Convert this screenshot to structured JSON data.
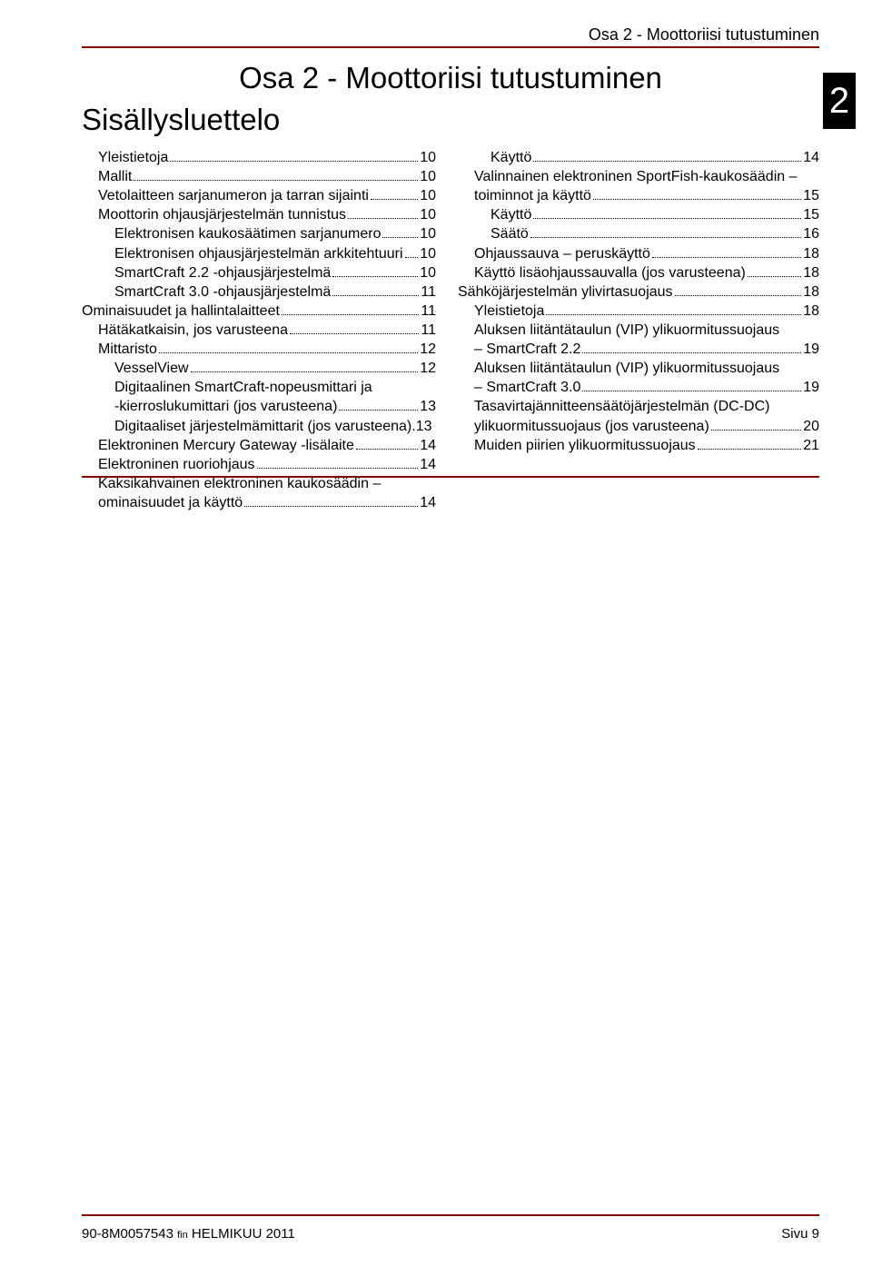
{
  "header_text": "Osa 2 - Moottoriisi tutustuminen",
  "title": "Osa 2 - Moottoriisi tutustuminen",
  "subtitle": "Sisällysluettelo",
  "tab_number": "2",
  "footer_left_code": "90-8M0057543",
  "footer_left_lang": "fin",
  "footer_left_date": "HELMIKUU  2011",
  "footer_right": "Sivu  9",
  "left": [
    {
      "indent": 1,
      "label": "Yleistietoja",
      "page": "10"
    },
    {
      "indent": 1,
      "label": "Mallit",
      "page": "10"
    },
    {
      "indent": 1,
      "label": "Vetolaitteen sarjanumeron ja tarran sijainti",
      "page": "10"
    },
    {
      "indent": 1,
      "label": "Moottorin ohjausjärjestelmän tunnistus",
      "page": "10"
    },
    {
      "indent": 2,
      "label": "Elektronisen kaukosäätimen sarjanumero",
      "page": "10"
    },
    {
      "indent": 2,
      "label": "Elektronisen ohjausjärjestelmän arkkitehtuuri",
      "page": "10"
    },
    {
      "indent": 2,
      "label": "SmartCraft 2.2 ‑ohjausjärjestelmä",
      "page": "10"
    },
    {
      "indent": 2,
      "label": "SmartCraft 3.0 ‑ohjausjärjestelmä",
      "page": "11"
    },
    {
      "indent": 0,
      "label": "Ominaisuudet ja hallintalaitteet",
      "page": "11"
    },
    {
      "indent": 1,
      "label": "Hätäkatkaisin, jos varusteena",
      "page": "11"
    },
    {
      "indent": 1,
      "label": "Mittaristo",
      "page": "12"
    },
    {
      "indent": 2,
      "label": "VesselView",
      "page": "12"
    },
    {
      "indent": 2,
      "label": "Digitaalinen SmartCraft‑nopeusmittari ja ‑kierroslukumittari (jos varusteena)",
      "page": "13",
      "multi": true
    },
    {
      "indent": 2,
      "label": "Digitaaliset järjestelmämittarit (jos varusteena)",
      "page": "13",
      "nodots": true
    },
    {
      "indent": 1,
      "label": "Elektroninen Mercury Gateway ‑lisälaite",
      "page": "14"
    },
    {
      "indent": 1,
      "label": "Elektroninen ruoriohjaus",
      "page": "14"
    },
    {
      "indent": 1,
      "label": "Kaksikahvainen elektroninen kaukosäädin – ominaisuudet ja käyttö",
      "page": "14",
      "multi": true
    }
  ],
  "right": [
    {
      "indent": 2,
      "label": "Käyttö",
      "page": "14"
    },
    {
      "indent": 1,
      "label": "Valinnainen elektroninen SportFish‑kaukosäädin – toiminnot ja käyttö",
      "page": "15",
      "multi": true
    },
    {
      "indent": 2,
      "label": "Käyttö",
      "page": "15"
    },
    {
      "indent": 2,
      "label": "Säätö",
      "page": "16"
    },
    {
      "indent": 1,
      "label": "Ohjaussauva – peruskäyttö",
      "page": "18"
    },
    {
      "indent": 1,
      "label": "Käyttö lisäohjaussauvalla (jos varusteena)",
      "page": "18"
    },
    {
      "indent": 0,
      "label": "Sähköjärjestelmän ylivirtasuojaus",
      "page": "18"
    },
    {
      "indent": 1,
      "label": "Yleistietoja",
      "page": "18"
    },
    {
      "indent": 1,
      "label": "Aluksen liitäntätaulun (VIP) ylikuormitussuojaus – SmartCraft 2.2",
      "page": "19",
      "multi": true
    },
    {
      "indent": 1,
      "label": "Aluksen liitäntätaulun (VIP) ylikuormitussuojaus – SmartCraft 3.0",
      "page": "19",
      "multi": true
    },
    {
      "indent": 1,
      "label": "Tasavirtajännitteensäätöjärjestelmän (DC‑DC) ylikuormitussuojaus (jos varusteena)",
      "page": "20",
      "multi": true
    },
    {
      "indent": 1,
      "label": "Muiden piirien ylikuormitussuojaus",
      "page": "21"
    }
  ]
}
